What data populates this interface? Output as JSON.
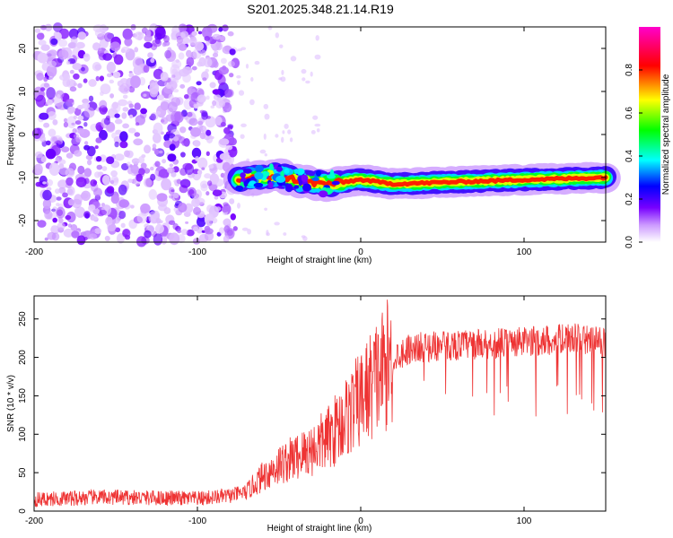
{
  "title": "S201.2025.348.21.14.R19",
  "chart_data": [
    {
      "type": "heatmap",
      "xlabel": "Height of straight line (km)",
      "ylabel": "Frequency (Hz)",
      "xlim": [
        -200,
        150
      ],
      "ylim": [
        -25,
        25
      ],
      "xticks": [
        -200,
        -100,
        0,
        100
      ],
      "yticks": [
        -20,
        -10,
        0,
        10,
        20
      ],
      "grid": false,
      "colorbar": {
        "label": "Normalized spectral amplitude",
        "range": [
          0,
          1
        ],
        "ticks": [
          0.0,
          0.2,
          0.4,
          0.6,
          0.8
        ],
        "colormap": [
          "#ffffff",
          "#cc99ff",
          "#7700ff",
          "#0000ff",
          "#00ffff",
          "#00ff00",
          "#ffff00",
          "#ff0000",
          "#ff00cc"
        ]
      },
      "signal_band": {
        "noise_region_x": [
          -200,
          -75
        ],
        "ridge_start_x": -75,
        "ridge_points": [
          {
            "x": -75,
            "y": -10.5
          },
          {
            "x": -50,
            "y": -9.5
          },
          {
            "x": -35,
            "y": -11
          },
          {
            "x": -20,
            "y": -11.5
          },
          {
            "x": 0,
            "y": -10.5
          },
          {
            "x": 20,
            "y": -11.5
          },
          {
            "x": 60,
            "y": -11
          },
          {
            "x": 100,
            "y": -10.5
          },
          {
            "x": 150,
            "y": -10
          }
        ],
        "peak_amplitude": 0.95
      }
    },
    {
      "type": "line",
      "xlabel": "Height of straight line (km)",
      "ylabel": "SNR (10 * v/v)",
      "xlim": [
        -200,
        150
      ],
      "ylim": [
        0,
        280
      ],
      "xticks": [
        -200,
        -100,
        0,
        100
      ],
      "yticks": [
        0,
        50,
        100,
        150,
        200,
        250
      ],
      "grid": false,
      "series_color": "#ee3333",
      "trend": [
        {
          "x": -200,
          "y": 15
        },
        {
          "x": -160,
          "y": 18
        },
        {
          "x": -120,
          "y": 17
        },
        {
          "x": -100,
          "y": 16
        },
        {
          "x": -80,
          "y": 20
        },
        {
          "x": -70,
          "y": 25
        },
        {
          "x": -60,
          "y": 45
        },
        {
          "x": -50,
          "y": 60
        },
        {
          "x": -40,
          "y": 70
        },
        {
          "x": -30,
          "y": 80
        },
        {
          "x": -20,
          "y": 95
        },
        {
          "x": -10,
          "y": 120
        },
        {
          "x": 0,
          "y": 145
        },
        {
          "x": 10,
          "y": 175
        },
        {
          "x": 20,
          "y": 200
        },
        {
          "x": 30,
          "y": 212
        },
        {
          "x": 50,
          "y": 215
        },
        {
          "x": 80,
          "y": 218
        },
        {
          "x": 100,
          "y": 220
        },
        {
          "x": 130,
          "y": 225
        },
        {
          "x": 150,
          "y": 220
        }
      ]
    }
  ]
}
